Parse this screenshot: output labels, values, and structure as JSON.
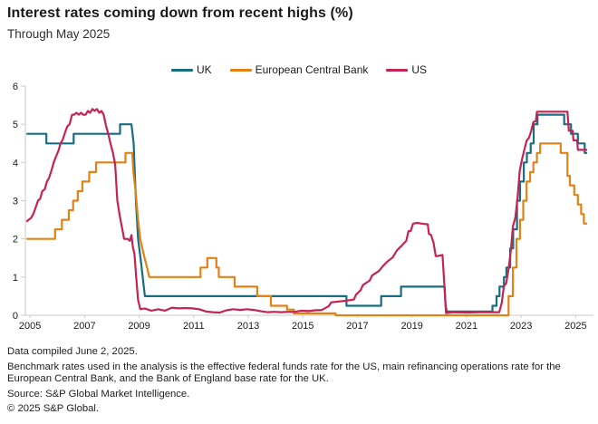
{
  "header": {
    "title": "Interest rates coming down from recent highs (%)",
    "subtitle": "Through May 2025"
  },
  "footer": {
    "compiled": "Data compiled June 2, 2025.",
    "note": "Benchmark rates used in the analysis is the effective federal funds rate for the US, main refinancing operations rate for the European Central Bank, and the Bank of England base rate for the UK.",
    "source": "Source: S&P Global Market Intelligence.",
    "copyright": "© 2025 S&P Global."
  },
  "chart_data": {
    "type": "line",
    "title": "Interest rates coming down from recent highs (%)",
    "subtitle": "Through May 2025",
    "xlabel": "",
    "ylabel": "",
    "grid": false,
    "legend_position": "top",
    "x_domain": [
      2004.83,
      2025.42
    ],
    "y_domain": [
      0,
      6
    ],
    "x_ticks": [
      2005,
      2007,
      2009,
      2011,
      2013,
      2015,
      2017,
      2019,
      2021,
      2023,
      2025
    ],
    "y_ticks": [
      0,
      1,
      2,
      3,
      4,
      5,
      6
    ],
    "axis_color": "#c9c9c9",
    "series": [
      {
        "name": "UK",
        "color": "#186d80",
        "points": [
          [
            2004.87,
            4.75
          ],
          [
            2005.6,
            4.75
          ],
          [
            2005.6,
            4.5
          ],
          [
            2006.6,
            4.5
          ],
          [
            2006.6,
            4.75
          ],
          [
            2008.3,
            4.75
          ],
          [
            2008.3,
            5.0
          ],
          [
            2008.72,
            5.0
          ],
          [
            2008.8,
            4.5
          ],
          [
            2008.88,
            3.0
          ],
          [
            2008.96,
            2.0
          ],
          [
            2009.05,
            1.5
          ],
          [
            2009.13,
            1.0
          ],
          [
            2009.21,
            0.5
          ],
          [
            2016.6,
            0.5
          ],
          [
            2016.6,
            0.25
          ],
          [
            2017.87,
            0.25
          ],
          [
            2017.87,
            0.5
          ],
          [
            2018.6,
            0.5
          ],
          [
            2018.6,
            0.75
          ],
          [
            2020.2,
            0.75
          ],
          [
            2020.23,
            0.25
          ],
          [
            2020.28,
            0.1
          ],
          [
            2021.95,
            0.1
          ],
          [
            2021.95,
            0.25
          ],
          [
            2022.1,
            0.25
          ],
          [
            2022.1,
            0.5
          ],
          [
            2022.21,
            0.5
          ],
          [
            2022.21,
            0.75
          ],
          [
            2022.37,
            0.75
          ],
          [
            2022.37,
            1.0
          ],
          [
            2022.46,
            1.0
          ],
          [
            2022.46,
            1.25
          ],
          [
            2022.6,
            1.25
          ],
          [
            2022.6,
            1.75
          ],
          [
            2022.71,
            1.75
          ],
          [
            2022.71,
            2.25
          ],
          [
            2022.85,
            2.25
          ],
          [
            2022.85,
            3.0
          ],
          [
            2022.96,
            3.0
          ],
          [
            2022.96,
            3.5
          ],
          [
            2023.1,
            3.5
          ],
          [
            2023.1,
            4.0
          ],
          [
            2023.21,
            4.0
          ],
          [
            2023.21,
            4.25
          ],
          [
            2023.35,
            4.25
          ],
          [
            2023.35,
            4.5
          ],
          [
            2023.46,
            4.5
          ],
          [
            2023.46,
            5.0
          ],
          [
            2023.6,
            5.0
          ],
          [
            2023.6,
            5.25
          ],
          [
            2024.58,
            5.25
          ],
          [
            2024.58,
            5.0
          ],
          [
            2024.83,
            5.0
          ],
          [
            2024.83,
            4.75
          ],
          [
            2025.08,
            4.75
          ],
          [
            2025.08,
            4.5
          ],
          [
            2025.33,
            4.5
          ],
          [
            2025.33,
            4.25
          ],
          [
            2025.42,
            4.25
          ]
        ]
      },
      {
        "name": "European Central Bank",
        "color": "#e08214",
        "points": [
          [
            2004.87,
            2.0
          ],
          [
            2005.92,
            2.0
          ],
          [
            2005.92,
            2.25
          ],
          [
            2006.17,
            2.25
          ],
          [
            2006.17,
            2.5
          ],
          [
            2006.42,
            2.5
          ],
          [
            2006.42,
            2.75
          ],
          [
            2006.58,
            2.75
          ],
          [
            2006.58,
            3.0
          ],
          [
            2006.75,
            3.0
          ],
          [
            2006.75,
            3.25
          ],
          [
            2006.92,
            3.25
          ],
          [
            2006.92,
            3.5
          ],
          [
            2007.17,
            3.5
          ],
          [
            2007.17,
            3.75
          ],
          [
            2007.42,
            3.75
          ],
          [
            2007.42,
            4.0
          ],
          [
            2008.5,
            4.0
          ],
          [
            2008.5,
            4.25
          ],
          [
            2008.75,
            4.25
          ],
          [
            2008.79,
            3.75
          ],
          [
            2008.87,
            3.25
          ],
          [
            2008.96,
            2.5
          ],
          [
            2009.04,
            2.0
          ],
          [
            2009.2,
            1.5
          ],
          [
            2009.29,
            1.25
          ],
          [
            2009.37,
            1.0
          ],
          [
            2011.25,
            1.0
          ],
          [
            2011.25,
            1.25
          ],
          [
            2011.5,
            1.25
          ],
          [
            2011.5,
            1.5
          ],
          [
            2011.83,
            1.5
          ],
          [
            2011.83,
            1.25
          ],
          [
            2011.92,
            1.25
          ],
          [
            2011.92,
            1.0
          ],
          [
            2012.5,
            1.0
          ],
          [
            2012.5,
            0.75
          ],
          [
            2013.33,
            0.75
          ],
          [
            2013.33,
            0.5
          ],
          [
            2013.83,
            0.5
          ],
          [
            2013.83,
            0.25
          ],
          [
            2014.42,
            0.25
          ],
          [
            2014.42,
            0.15
          ],
          [
            2014.67,
            0.15
          ],
          [
            2014.67,
            0.05
          ],
          [
            2016.2,
            0.05
          ],
          [
            2016.2,
            0.0
          ],
          [
            2022.54,
            0.0
          ],
          [
            2022.54,
            0.5
          ],
          [
            2022.7,
            0.5
          ],
          [
            2022.7,
            1.25
          ],
          [
            2022.83,
            1.25
          ],
          [
            2022.83,
            2.0
          ],
          [
            2022.96,
            2.0
          ],
          [
            2022.96,
            2.5
          ],
          [
            2023.08,
            2.5
          ],
          [
            2023.08,
            3.0
          ],
          [
            2023.2,
            3.0
          ],
          [
            2023.2,
            3.5
          ],
          [
            2023.33,
            3.5
          ],
          [
            2023.33,
            3.75
          ],
          [
            2023.45,
            3.75
          ],
          [
            2023.45,
            4.0
          ],
          [
            2023.58,
            4.0
          ],
          [
            2023.58,
            4.25
          ],
          [
            2023.7,
            4.25
          ],
          [
            2023.7,
            4.5
          ],
          [
            2024.45,
            4.5
          ],
          [
            2024.45,
            4.25
          ],
          [
            2024.7,
            4.25
          ],
          [
            2024.7,
            3.65
          ],
          [
            2024.79,
            3.65
          ],
          [
            2024.79,
            3.4
          ],
          [
            2024.95,
            3.4
          ],
          [
            2024.95,
            3.15
          ],
          [
            2025.08,
            3.15
          ],
          [
            2025.08,
            2.9
          ],
          [
            2025.2,
            2.9
          ],
          [
            2025.2,
            2.65
          ],
          [
            2025.3,
            2.65
          ],
          [
            2025.3,
            2.4
          ],
          [
            2025.42,
            2.4
          ]
        ]
      },
      {
        "name": "US",
        "color": "#c32355",
        "points": [
          [
            2004.87,
            2.45
          ],
          [
            2004.95,
            2.5
          ],
          [
            2005.04,
            2.55
          ],
          [
            2005.12,
            2.65
          ],
          [
            2005.2,
            2.8
          ],
          [
            2005.29,
            3.0
          ],
          [
            2005.37,
            3.05
          ],
          [
            2005.45,
            3.25
          ],
          [
            2005.54,
            3.3
          ],
          [
            2005.62,
            3.5
          ],
          [
            2005.7,
            3.6
          ],
          [
            2005.79,
            3.8
          ],
          [
            2005.87,
            4.0
          ],
          [
            2005.95,
            4.15
          ],
          [
            2006.04,
            4.3
          ],
          [
            2006.12,
            4.5
          ],
          [
            2006.2,
            4.6
          ],
          [
            2006.29,
            4.8
          ],
          [
            2006.37,
            4.95
          ],
          [
            2006.45,
            5.0
          ],
          [
            2006.54,
            5.25
          ],
          [
            2006.62,
            5.25
          ],
          [
            2006.7,
            5.3
          ],
          [
            2006.79,
            5.25
          ],
          [
            2006.87,
            5.3
          ],
          [
            2006.95,
            5.25
          ],
          [
            2007.04,
            5.25
          ],
          [
            2007.12,
            5.35
          ],
          [
            2007.2,
            5.3
          ],
          [
            2007.29,
            5.4
          ],
          [
            2007.37,
            5.35
          ],
          [
            2007.45,
            5.4
          ],
          [
            2007.54,
            5.3
          ],
          [
            2007.62,
            5.35
          ],
          [
            2007.7,
            5.25
          ],
          [
            2007.79,
            4.95
          ],
          [
            2007.87,
            4.75
          ],
          [
            2007.95,
            4.5
          ],
          [
            2008.04,
            4.25
          ],
          [
            2008.12,
            3.95
          ],
          [
            2008.2,
            3.0
          ],
          [
            2008.29,
            2.6
          ],
          [
            2008.37,
            2.3
          ],
          [
            2008.45,
            2.0
          ],
          [
            2008.58,
            2.0
          ],
          [
            2008.66,
            1.95
          ],
          [
            2008.72,
            2.1
          ],
          [
            2008.77,
            1.8
          ],
          [
            2008.83,
            1.6
          ],
          [
            2008.89,
            1.0
          ],
          [
            2008.96,
            0.4
          ],
          [
            2009.04,
            0.16
          ],
          [
            2009.2,
            0.18
          ],
          [
            2009.45,
            0.12
          ],
          [
            2009.7,
            0.16
          ],
          [
            2009.95,
            0.12
          ],
          [
            2010.2,
            0.2
          ],
          [
            2010.45,
            0.18
          ],
          [
            2010.7,
            0.19
          ],
          [
            2010.95,
            0.18
          ],
          [
            2011.2,
            0.16
          ],
          [
            2011.45,
            0.1
          ],
          [
            2011.7,
            0.08
          ],
          [
            2011.95,
            0.07
          ],
          [
            2012.2,
            0.13
          ],
          [
            2012.45,
            0.16
          ],
          [
            2012.7,
            0.14
          ],
          [
            2012.95,
            0.16
          ],
          [
            2013.2,
            0.14
          ],
          [
            2013.45,
            0.11
          ],
          [
            2013.7,
            0.08
          ],
          [
            2013.95,
            0.09
          ],
          [
            2014.2,
            0.08
          ],
          [
            2014.45,
            0.09
          ],
          [
            2014.7,
            0.09
          ],
          [
            2014.95,
            0.12
          ],
          [
            2015.2,
            0.11
          ],
          [
            2015.45,
            0.13
          ],
          [
            2015.7,
            0.14
          ],
          [
            2015.95,
            0.24
          ],
          [
            2016.04,
            0.34
          ],
          [
            2016.45,
            0.37
          ],
          [
            2016.87,
            0.41
          ],
          [
            2016.95,
            0.54
          ],
          [
            2017.12,
            0.66
          ],
          [
            2017.2,
            0.79
          ],
          [
            2017.45,
            0.91
          ],
          [
            2017.54,
            1.04
          ],
          [
            2017.79,
            1.16
          ],
          [
            2017.95,
            1.3
          ],
          [
            2018.12,
            1.42
          ],
          [
            2018.29,
            1.51
          ],
          [
            2018.45,
            1.7
          ],
          [
            2018.62,
            1.82
          ],
          [
            2018.79,
            1.95
          ],
          [
            2018.87,
            2.2
          ],
          [
            2018.95,
            2.2
          ],
          [
            2019.04,
            2.4
          ],
          [
            2019.2,
            2.42
          ],
          [
            2019.35,
            2.4
          ],
          [
            2019.58,
            2.38
          ],
          [
            2019.62,
            2.13
          ],
          [
            2019.7,
            2.1
          ],
          [
            2019.79,
            1.9
          ],
          [
            2019.87,
            1.55
          ],
          [
            2019.95,
            1.55
          ],
          [
            2020.12,
            1.58
          ],
          [
            2020.2,
            0.65
          ],
          [
            2020.25,
            0.06
          ],
          [
            2020.5,
            0.08
          ],
          [
            2021.0,
            0.07
          ],
          [
            2021.5,
            0.08
          ],
          [
            2022.0,
            0.08
          ],
          [
            2022.2,
            0.08
          ],
          [
            2022.29,
            0.33
          ],
          [
            2022.37,
            0.77
          ],
          [
            2022.45,
            0.83
          ],
          [
            2022.54,
            1.21
          ],
          [
            2022.62,
            1.68
          ],
          [
            2022.7,
            2.33
          ],
          [
            2022.79,
            2.56
          ],
          [
            2022.87,
            3.08
          ],
          [
            2022.95,
            3.78
          ],
          [
            2023.04,
            4.1
          ],
          [
            2023.12,
            4.33
          ],
          [
            2023.2,
            4.57
          ],
          [
            2023.29,
            4.65
          ],
          [
            2023.37,
            4.83
          ],
          [
            2023.45,
            5.06
          ],
          [
            2023.54,
            5.08
          ],
          [
            2023.58,
            5.33
          ],
          [
            2024.7,
            5.33
          ],
          [
            2024.75,
            4.83
          ],
          [
            2024.89,
            4.83
          ],
          [
            2024.92,
            4.58
          ],
          [
            2025.05,
            4.58
          ],
          [
            2025.08,
            4.33
          ],
          [
            2025.42,
            4.33
          ]
        ]
      }
    ]
  }
}
